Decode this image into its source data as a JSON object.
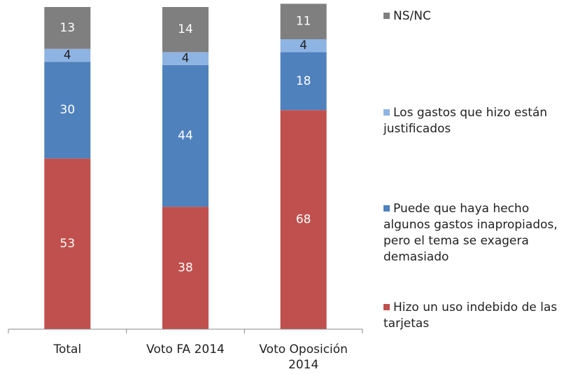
{
  "chart_data": {
    "type": "stacked_bar",
    "categories": [
      "Total",
      "Voto FA 2014",
      "Voto Oposición 2014"
    ],
    "series": [
      {
        "name": "Hizo un uso indebido de las tarjetas",
        "color": "#c0504d",
        "values": [
          53,
          38,
          68
        ]
      },
      {
        "name": "Puede que haya hecho algunos gastos inapropiados, pero el tema se exagera demasiado",
        "color": "#4f81bd",
        "values": [
          30,
          44,
          18
        ]
      },
      {
        "name": "Los gastos que hizo están justificados",
        "color": "#8eb4e3",
        "values": [
          4,
          4,
          4
        ]
      },
      {
        "name": "NS/NC",
        "color": "#7f7f7f",
        "values": [
          13,
          14,
          11
        ]
      }
    ],
    "ylim": [
      0,
      100
    ],
    "legend": "right"
  }
}
